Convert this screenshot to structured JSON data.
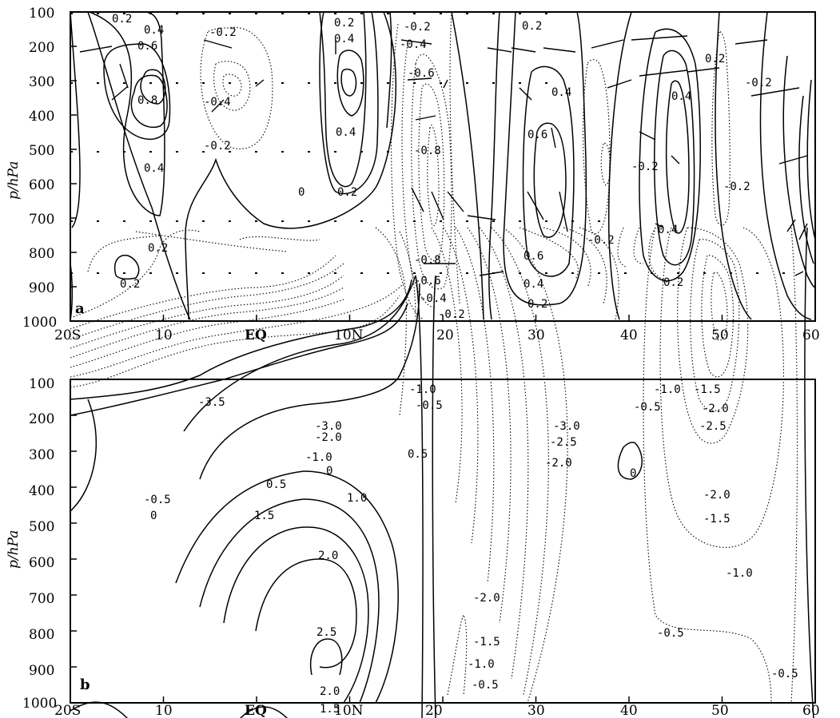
{
  "figure": {
    "panels": [
      "a",
      "b"
    ],
    "ylabel": "p/hPa"
  },
  "chart_data": [
    {
      "type": "contour",
      "panel": "a",
      "ylabel": "p/hPa",
      "xticks": [
        "20S",
        "10",
        "EQ",
        "10N",
        "20",
        "30",
        "40",
        "50",
        "60"
      ],
      "yticks": [
        "100",
        "200",
        "300",
        "400",
        "500",
        "600",
        "700",
        "800",
        "900",
        "1000"
      ],
      "xlim": [
        -20,
        60
      ],
      "ylim": [
        1000,
        100
      ],
      "vectors_overlaid": true,
      "contour_labels": [
        "0.2",
        "0.4",
        "0.6",
        "0.8",
        "0.4",
        "0.2",
        "0.2",
        "-0.2",
        "-0.4",
        "-0.2",
        "0.2",
        "0.4",
        "0.4",
        "0.2",
        "0",
        "-0.2",
        "-0.4",
        "-0.6",
        "-0.8",
        "-0.8",
        "-0.6",
        "-0.4",
        "-0.2",
        "0.2",
        "0.4",
        "0.6",
        "0.6",
        "0.4",
        "0.2",
        "-0.2",
        "-0.2",
        "0.4",
        "0.4",
        "0.2",
        "-0.2",
        "-0.2",
        "0.2"
      ]
    },
    {
      "type": "contour",
      "panel": "b",
      "ylabel": "p/hPa",
      "xticks": [
        "20S",
        "10",
        "EQ",
        "10N",
        "20",
        "30",
        "40",
        "50",
        "60"
      ],
      "yticks": [
        "100",
        "200",
        "300",
        "400",
        "500",
        "600",
        "700",
        "800",
        "900",
        "1000"
      ],
      "xlim": [
        -20,
        60
      ],
      "ylim": [
        1000,
        100
      ],
      "contour_labels": [
        "-3.5",
        "-3.0",
        "-2.0",
        "-1.0",
        "0",
        "-0.5",
        "0",
        "0.5",
        "1.0",
        "1.5",
        "2.0",
        "2.5",
        "2.0",
        "1.5",
        "0.5",
        "-1.0",
        "-0.5",
        "-3.0",
        "-2.5",
        "-2.0",
        "0",
        "-1.0",
        "-0.5",
        "-1.5",
        "-2.0",
        "-2.5",
        "-2.0",
        "-1.5",
        "-1.0",
        "-0.5",
        "-0.5",
        "-2.0",
        "-1.5",
        "-1.0",
        "-0.5"
      ]
    }
  ]
}
